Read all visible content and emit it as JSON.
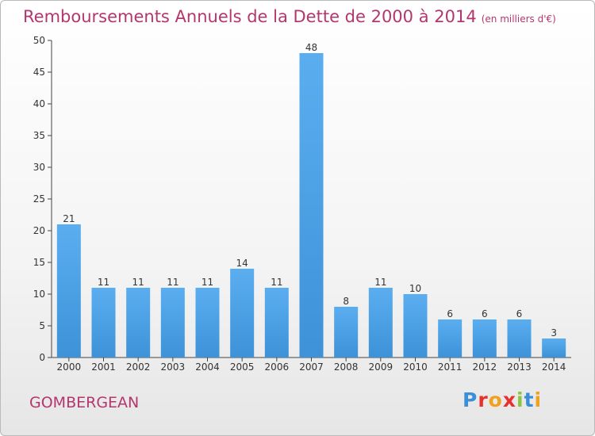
{
  "chart_data": {
    "type": "bar",
    "title": "Remboursements Annuels de la Dette de 2000 à 2014",
    "subtitle": "(en milliers d'€)",
    "categories": [
      "2000",
      "2001",
      "2002",
      "2003",
      "2004",
      "2005",
      "2006",
      "2007",
      "2008",
      "2009",
      "2010",
      "2011",
      "2012",
      "2013",
      "2014"
    ],
    "values": [
      21,
      11,
      11,
      11,
      11,
      14,
      11,
      48,
      8,
      11,
      10,
      6,
      6,
      6,
      3
    ],
    "ylim": [
      0,
      50
    ],
    "yticks": [
      0,
      5,
      10,
      15,
      20,
      25,
      30,
      35,
      40,
      45,
      50
    ],
    "grid": false,
    "bar_color": "#3d92d8"
  },
  "footer": {
    "commune": "GOMBERGEAN",
    "logo_letters": [
      {
        "ch": "P",
        "color": "#3a8fd9"
      },
      {
        "ch": "r",
        "color": "#e8312f"
      },
      {
        "ch": "o",
        "color": "#f0a11d"
      },
      {
        "ch": "x",
        "color": "#e8312f"
      },
      {
        "ch": "i",
        "color": "#8bc63f"
      },
      {
        "ch": "t",
        "color": "#3a8fd9"
      },
      {
        "ch": "i",
        "color": "#f0a11d"
      }
    ]
  }
}
